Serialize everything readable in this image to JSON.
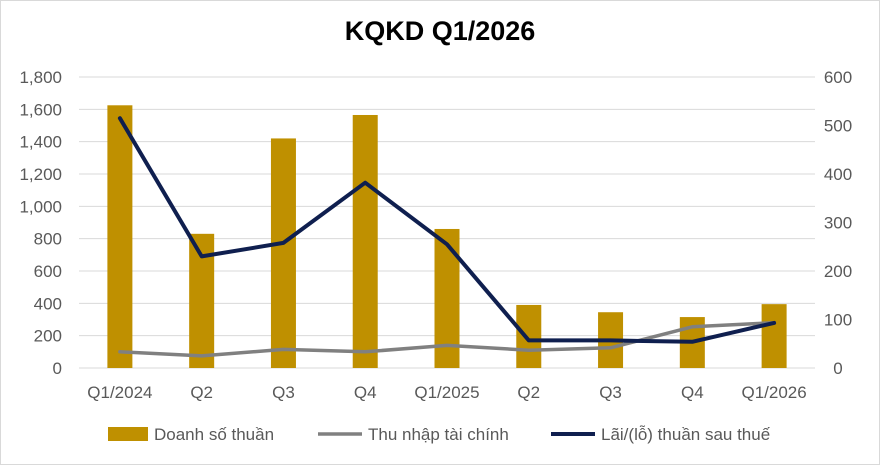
{
  "chart_data": {
    "type": "bar",
    "title": "KQKD Q1/2026",
    "categories": [
      "Q1/2024",
      "Q2",
      "Q3",
      "Q4",
      "Q1/2025",
      "Q2",
      "Q3",
      "Q4",
      "Q1/2026"
    ],
    "y_left": {
      "ylim": [
        0,
        1800
      ],
      "ticks": [
        "0",
        "200",
        "400",
        "600",
        "800",
        "1,000",
        "1,200",
        "1,400",
        "1,600",
        "1,800"
      ]
    },
    "y_right": {
      "ylim": [
        0,
        600
      ],
      "ticks": [
        "0",
        "100",
        "200",
        "300",
        "400",
        "500",
        "600"
      ]
    },
    "grid": true,
    "legend_position": "bottom",
    "series": [
      {
        "name": "Doanh số thuần",
        "type": "bar",
        "axis": "left",
        "color": "#BF9000",
        "values": [
          1625,
          830,
          1420,
          1565,
          860,
          390,
          345,
          315,
          395
        ]
      },
      {
        "name": "Thu nhập tài chính",
        "type": "line",
        "axis": "left",
        "color": "#808080",
        "values": [
          100,
          75,
          115,
          100,
          140,
          110,
          125,
          255,
          280
        ]
      },
      {
        "name": "Lãi/(lỗ) thuần sau thuế",
        "type": "line",
        "axis": "right",
        "color": "#0F1F4F",
        "values": [
          515,
          230,
          258,
          382,
          255,
          57,
          57,
          54,
          93
        ]
      }
    ]
  }
}
